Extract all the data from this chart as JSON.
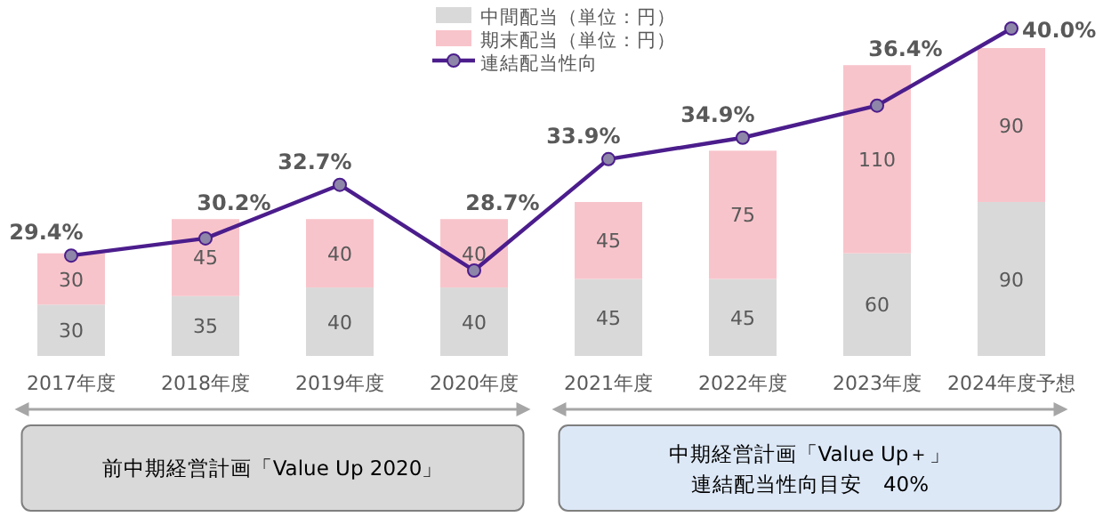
{
  "chart_data": {
    "type": "bar",
    "stacked": true,
    "legend": "top",
    "categories": [
      "2017年度",
      "2018年度",
      "2019年度",
      "2020年度",
      "2021年度",
      "2022年度",
      "2023年度",
      "2024年度予想"
    ],
    "series": [
      {
        "name": "中間配当（単位：円）",
        "color": "#d9d9d9",
        "values": [
          30,
          35,
          40,
          40,
          45,
          45,
          60,
          90
        ],
        "value_labels": [
          "30",
          "35",
          "40",
          "40",
          "45",
          "45",
          "60",
          "90"
        ]
      },
      {
        "name": "期末配当（単位：円）",
        "color": "#f8c4cb",
        "values": [
          30,
          45,
          40,
          40,
          45,
          75,
          110,
          90
        ],
        "value_labels": [
          "30",
          "45",
          "40",
          "40",
          "45",
          "75",
          "110",
          "90"
        ]
      },
      {
        "name": "連結配当性向",
        "type": "line",
        "axis": "y2",
        "color": "#4b1d8c",
        "marker": "circle",
        "values": [
          29.4,
          30.2,
          32.7,
          28.7,
          33.9,
          34.9,
          36.4,
          40.0
        ],
        "value_labels": [
          "29.4%",
          "30.2%",
          "32.7%",
          "28.7%",
          "33.9%",
          "34.9%",
          "36.4%",
          "40.0%"
        ]
      }
    ],
    "annotations": [
      "前中期経営計画「Value Up 2020」",
      "中期経営計画「Value Up＋」",
      "連結配当性向目安　40%"
    ]
  }
}
